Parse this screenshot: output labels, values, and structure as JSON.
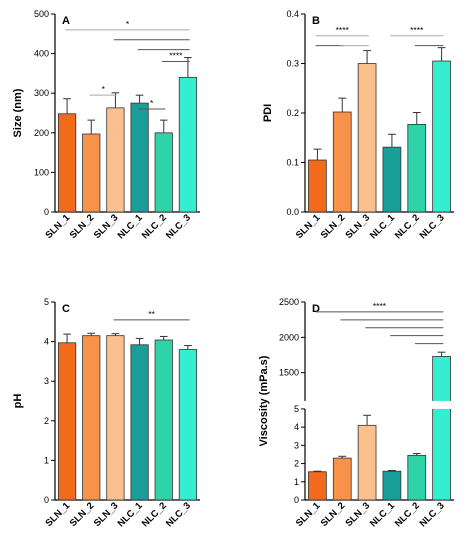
{
  "colors": {
    "SLN_1": "#f26b1d",
    "SLN_2": "#f7924a",
    "SLN_3": "#fbc08e",
    "NLC_1": "#1a9e9a",
    "NLC_2": "#2ed3a8",
    "NLC_3": "#35edd0",
    "sig_line_dark": "#555555",
    "sig_line_light": "#aaaaaa"
  },
  "chart_data": [
    {
      "panel": "A",
      "type": "bar",
      "categories": [
        "SLN_1",
        "SLN_2",
        "SLN_3",
        "NLC_1",
        "NLC_2",
        "NLC_3"
      ],
      "values": [
        248,
        197,
        263,
        275,
        200,
        340
      ],
      "errors": [
        38,
        35,
        38,
        20,
        32,
        50
      ],
      "ylabel": "Size (nm)",
      "ylim": [
        0,
        500
      ],
      "yticks": [
        "0",
        "100",
        "200",
        "300",
        "400",
        "500"
      ],
      "significance": [
        {
          "from": 0,
          "to": 5,
          "level": 0.92,
          "label": "*",
          "shade": "light"
        },
        {
          "from": 2,
          "to": 5,
          "level": 0.87,
          "label": "",
          "shade": "dark"
        },
        {
          "from": 3,
          "to": 5,
          "level": 0.82,
          "label": "",
          "shade": "dark"
        },
        {
          "from": 4,
          "to": 5,
          "level": 0.76,
          "label": "****",
          "shade": "dark"
        },
        {
          "from": 1,
          "to": 2,
          "level": 0.59,
          "label": "*",
          "shade": "light"
        },
        {
          "from": 3,
          "to": 4,
          "level": 0.52,
          "label": "*",
          "shade": "dark"
        }
      ]
    },
    {
      "panel": "B",
      "type": "bar",
      "categories": [
        "SLN_1",
        "SLN_2",
        "SLN_3",
        "NLC_1",
        "NLC_2",
        "NLC_3"
      ],
      "values": [
        0.105,
        0.202,
        0.3,
        0.131,
        0.177,
        0.305
      ],
      "errors": [
        0.022,
        0.028,
        0.026,
        0.026,
        0.024,
        0.027
      ],
      "ylabel": "PDI",
      "ylim": [
        0,
        0.4
      ],
      "yticks": [
        "0.0",
        "0.1",
        "0.2",
        "0.3",
        "0.4"
      ],
      "significance": [
        {
          "from": 0,
          "to": 2,
          "level": 0.89,
          "label": "****",
          "shade": "light"
        },
        {
          "from": 0,
          "to": 1,
          "level": 0.84,
          "label": "",
          "shade": "dark"
        },
        {
          "from": 1,
          "to": 2,
          "level": 0.84,
          "label": "",
          "shade": "light"
        },
        {
          "from": 3,
          "to": 5,
          "level": 0.89,
          "label": "****",
          "shade": "light"
        },
        {
          "from": 4,
          "to": 5,
          "level": 0.84,
          "label": "",
          "shade": "dark"
        }
      ]
    },
    {
      "panel": "C",
      "type": "bar",
      "categories": [
        "SLN_1",
        "SLN_2",
        "SLN_3",
        "NLC_1",
        "NLC_2",
        "NLC_3"
      ],
      "values": [
        3.97,
        4.15,
        4.15,
        3.92,
        4.04,
        3.8
      ],
      "errors": [
        0.22,
        0.06,
        0.05,
        0.16,
        0.09,
        0.1
      ],
      "ylabel": "pH",
      "ylim": [
        0,
        5
      ],
      "yticks": [
        "0",
        "1",
        "2",
        "3",
        "4",
        "5"
      ],
      "significance": [
        {
          "from": 2,
          "to": 5,
          "level": 0.91,
          "label": "**",
          "shade": "dark"
        }
      ]
    },
    {
      "panel": "D",
      "type": "bar",
      "categories": [
        "SLN_1",
        "SLN_2",
        "SLN_3",
        "NLC_1",
        "NLC_2",
        "NLC_3"
      ],
      "values": [
        1.55,
        2.3,
        4.1,
        1.58,
        2.45,
        1730
      ],
      "errors": [
        0.03,
        0.1,
        0.55,
        0.04,
        0.1,
        60
      ],
      "ylabel": "Viscosity (mPa.s)",
      "axis_break": {
        "lower": [
          0,
          5
        ],
        "upper": [
          1100,
          2500
        ]
      },
      "yticks_lower": [
        "0",
        "1",
        "2",
        "3",
        "4",
        "5"
      ],
      "yticks_upper": [
        "1500",
        "2000",
        "2500"
      ],
      "significance": [
        {
          "from": 0,
          "to": 5,
          "level": 0.95,
          "label": "****",
          "shade": "dark"
        },
        {
          "from": 1,
          "to": 5,
          "level": 0.91,
          "label": "",
          "shade": "dark"
        },
        {
          "from": 2,
          "to": 5,
          "level": 0.87,
          "label": "",
          "shade": "dark"
        },
        {
          "from": 3,
          "to": 5,
          "level": 0.83,
          "label": "",
          "shade": "dark"
        },
        {
          "from": 4,
          "to": 5,
          "level": 0.79,
          "label": "",
          "shade": "dark"
        }
      ]
    }
  ]
}
